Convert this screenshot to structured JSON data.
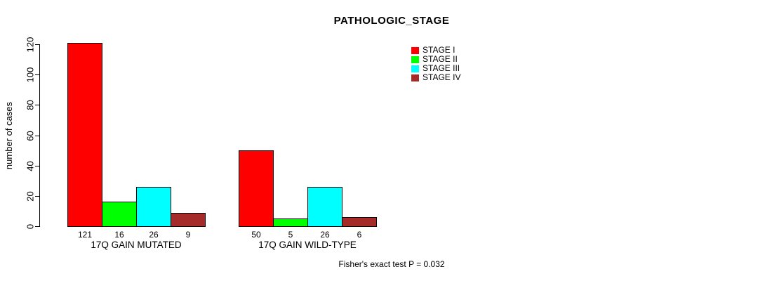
{
  "page": {
    "background_color": "#FFFFFF",
    "text_color": "#000000"
  },
  "chart_data": {
    "type": "bar",
    "title": "PATHOLOGIC_STAGE",
    "xlabel": "",
    "ylabel": "number of cases",
    "ylim": [
      0,
      120
    ],
    "yticks": [
      0,
      20,
      40,
      60,
      80,
      100,
      120
    ],
    "grid": false,
    "legend_position": "top-right",
    "legend": [
      {
        "label": "STAGE I",
        "color": "#FF0000"
      },
      {
        "label": "STAGE II",
        "color": "#00FF00"
      },
      {
        "label": "STAGE III",
        "color": "#00FFFF"
      },
      {
        "label": "STAGE IV",
        "color": "#A52A2A"
      }
    ],
    "categories": [
      "STAGE I",
      "STAGE II",
      "STAGE III",
      "STAGE IV"
    ],
    "groups": [
      {
        "label": "17Q GAIN MUTATED",
        "values": [
          121,
          16,
          26,
          9
        ]
      },
      {
        "label": "17Q GAIN WILD-TYPE",
        "values": [
          50,
          5,
          26,
          6
        ]
      }
    ],
    "bar_value_labels_shown": true,
    "annotation": "Fisher's exact test P = 0.032"
  }
}
